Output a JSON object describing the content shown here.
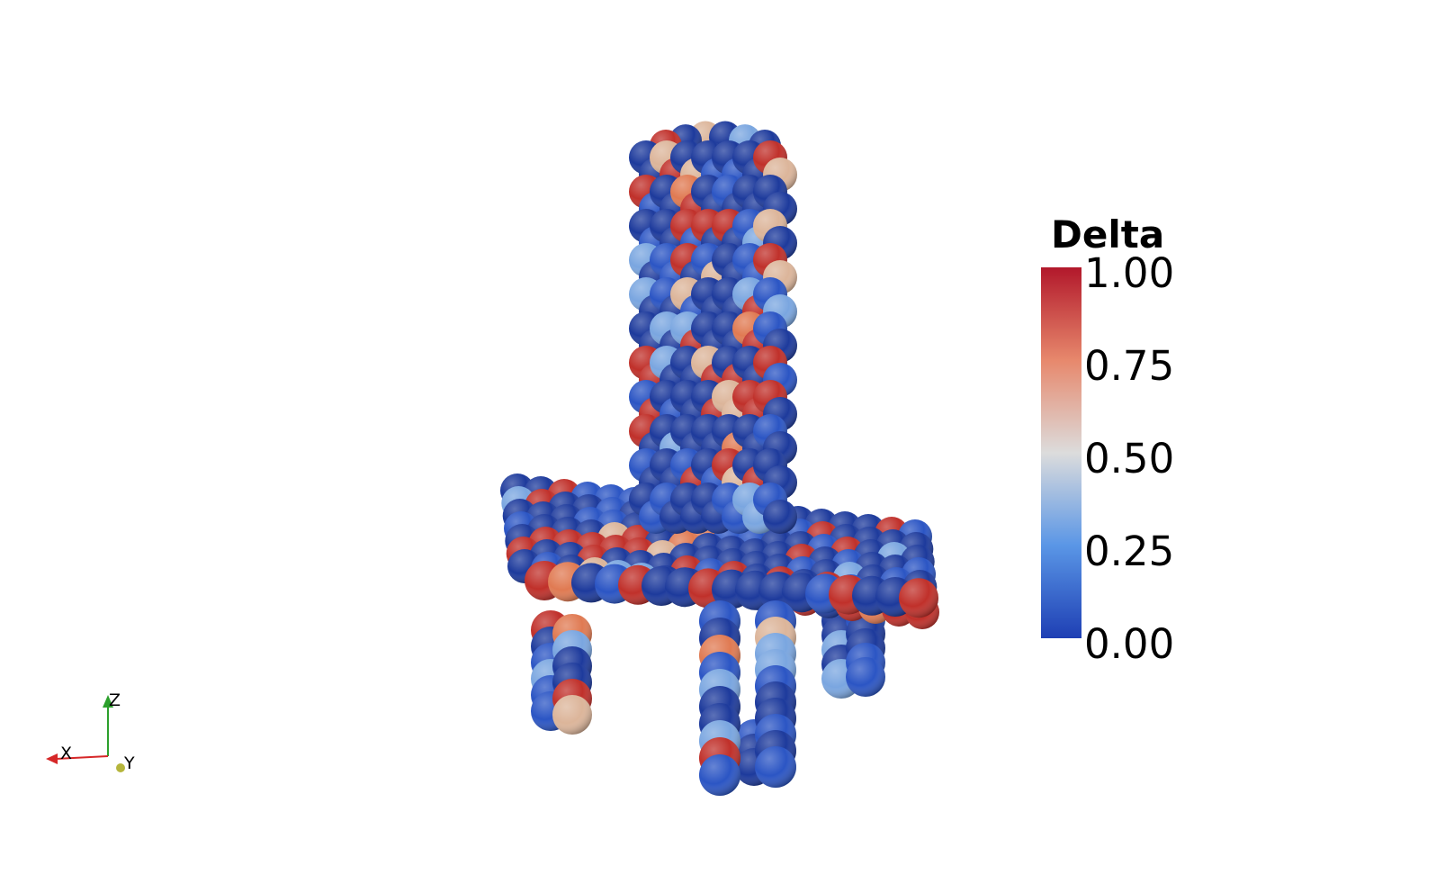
{
  "colormap": {
    "title": "Delta",
    "ticks": [
      "1.00",
      "0.75",
      "0.50",
      "0.25",
      "0.00"
    ],
    "colors": [
      "#b2182b",
      "#e7886c",
      "#dcdcdc",
      "#5a96e6",
      "#1e3fb4"
    ]
  },
  "orientation_axes": {
    "x_label": "X",
    "y_label": "Y",
    "z_label": "Z",
    "x_color": "#d62728",
    "y_color": "#b5b53c",
    "z_color": "#2ca02c"
  },
  "palette": {
    "dark_blue": "#1d3a9c",
    "blue": "#2b55c4",
    "light_blue": "#7aa6e0",
    "beige": "#dcb59a",
    "orange": "#e07a52",
    "red": "#c0302a"
  }
}
